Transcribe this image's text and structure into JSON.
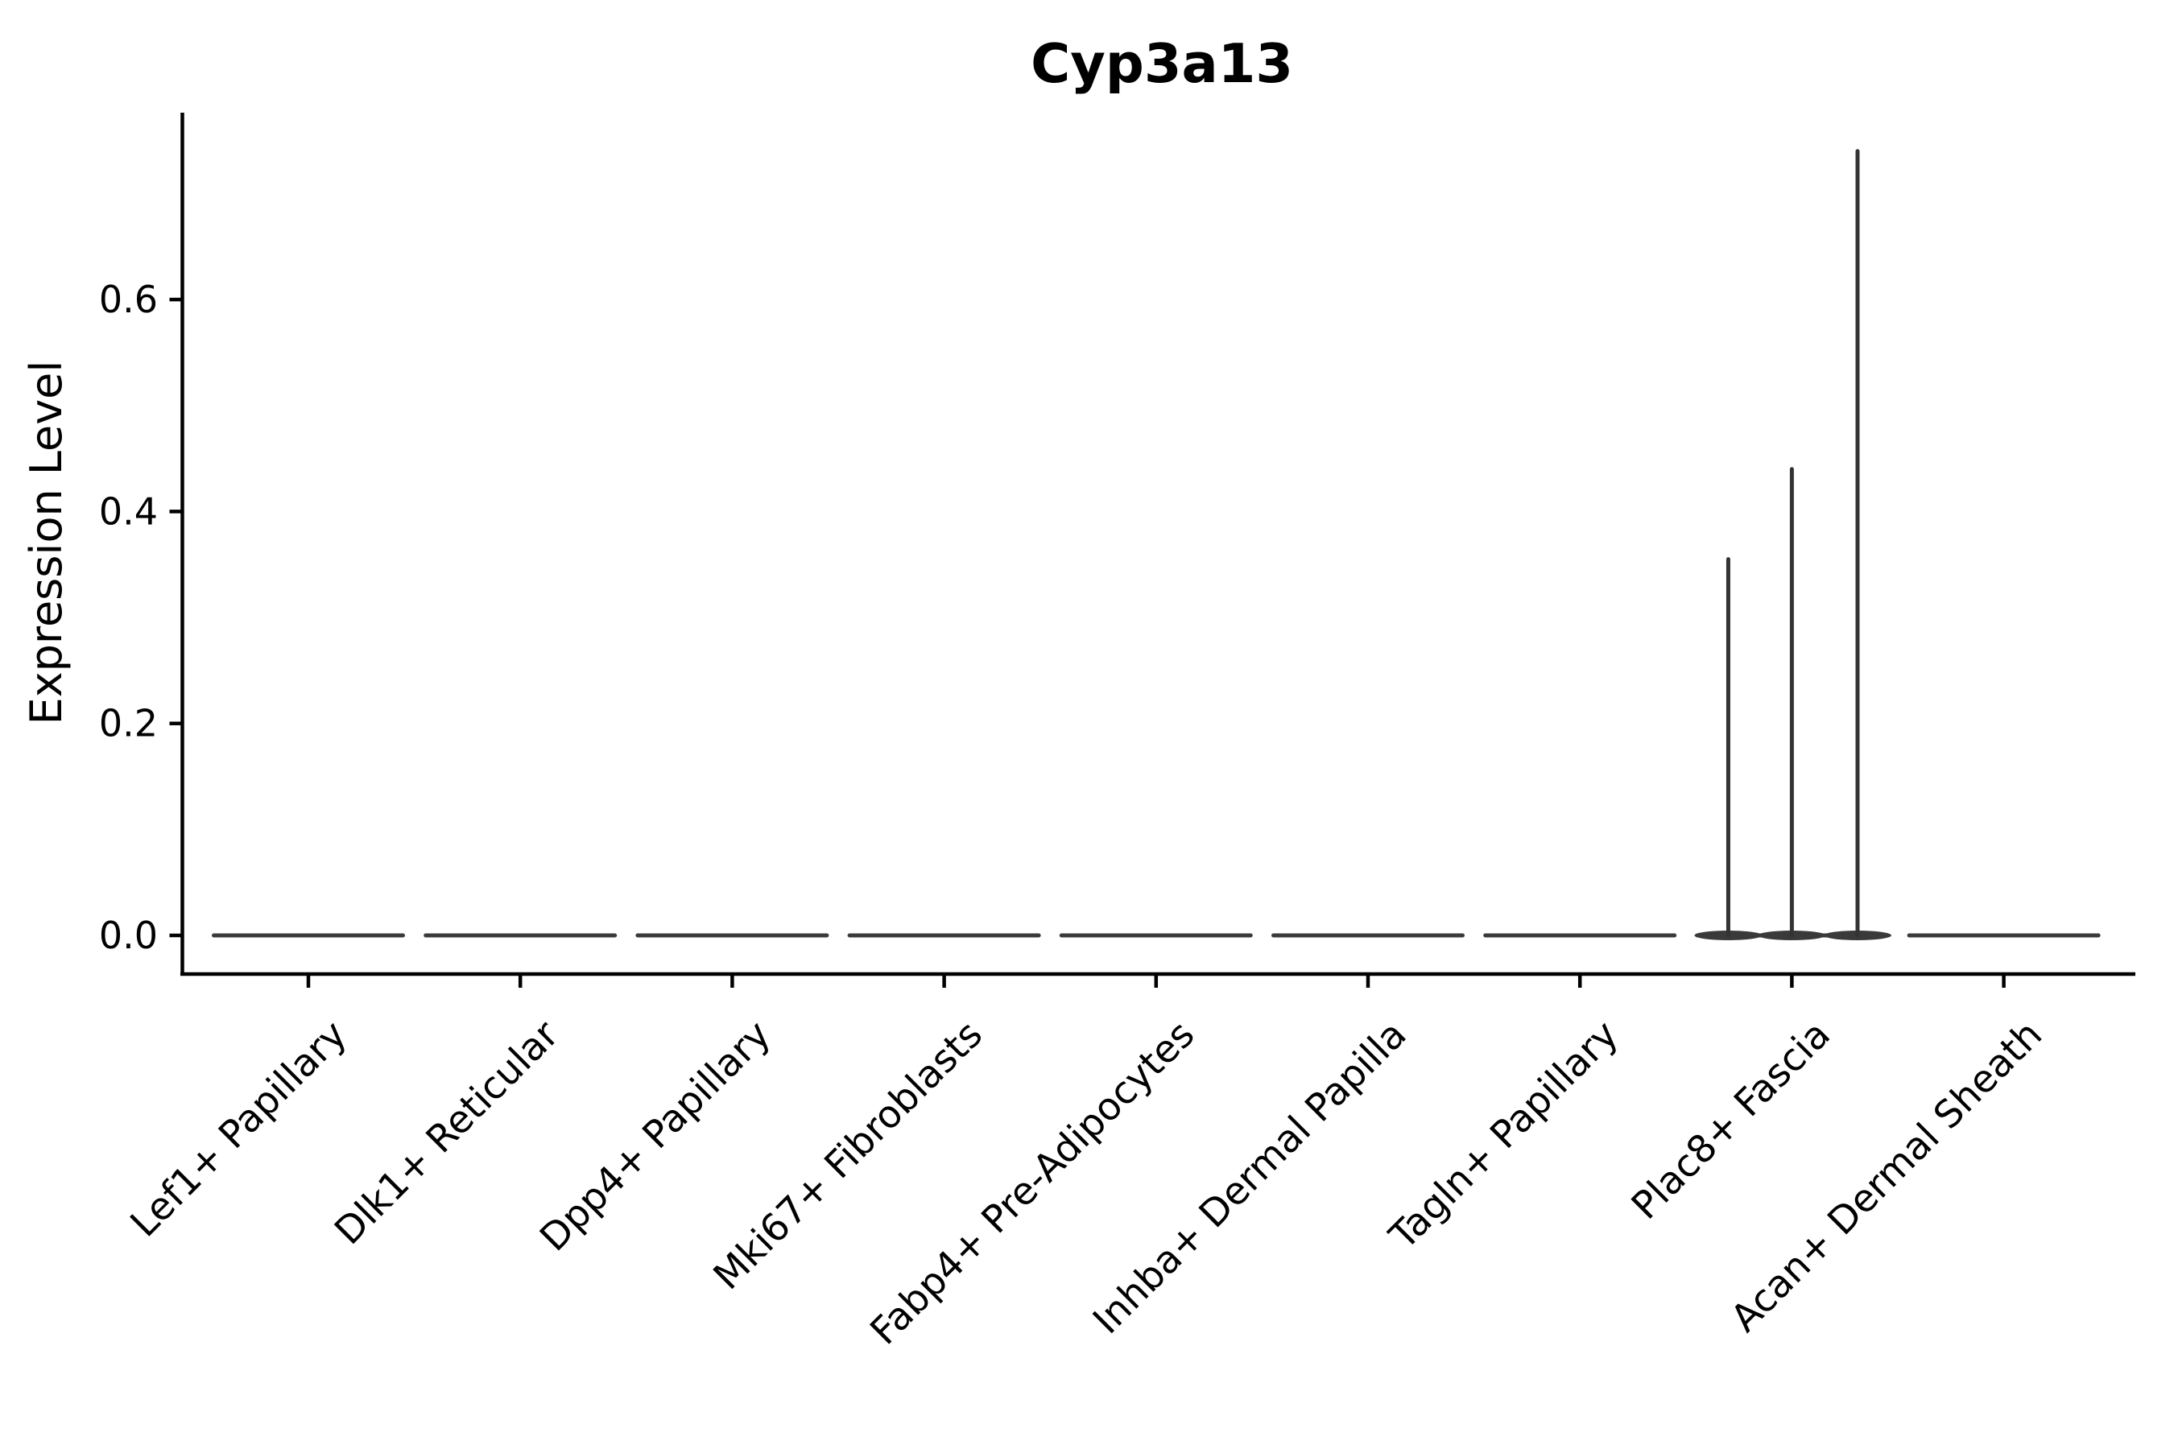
{
  "title": "Cyp3a13",
  "axes": {
    "y_label": "Expression Level",
    "y_tick_labels": [
      "0.0",
      "0.2",
      "0.4",
      "0.6"
    ]
  },
  "chart_data": {
    "type": "violin",
    "title": "Cyp3a13",
    "xlabel": "",
    "ylabel": "Expression Level",
    "categories": [
      "Lef1+ Papillary",
      "Dlk1+ Reticular",
      "Dpp4+ Papillary",
      "Mki67+ Fibroblasts",
      "Fabp4+ Pre-Adipocytes",
      "Inhba+ Dermal Papilla",
      "Tagln+ Papillary",
      "Plac8+ Fascia",
      "Acan+ Dermal Sheath"
    ],
    "yticks": [
      0.0,
      0.2,
      0.4,
      0.6
    ],
    "ylim": [
      -0.035,
      0.78
    ],
    "grid": false,
    "legend_position": "none",
    "series": [
      {
        "name": "Lef1+ Papillary",
        "base_value": 0.0,
        "spikes": []
      },
      {
        "name": "Dlk1+ Reticular",
        "base_value": 0.0,
        "spikes": []
      },
      {
        "name": "Dpp4+ Papillary",
        "base_value": 0.0,
        "spikes": []
      },
      {
        "name": "Mki67+ Fibroblasts",
        "base_value": 0.0,
        "spikes": []
      },
      {
        "name": "Fabp4+ Pre-Adipocytes",
        "base_value": 0.0,
        "spikes": []
      },
      {
        "name": "Inhba+ Dermal Papilla",
        "base_value": 0.0,
        "spikes": []
      },
      {
        "name": "Tagln+ Papillary",
        "base_value": 0.0,
        "spikes": []
      },
      {
        "name": "Plac8+ Fascia",
        "base_value": 0.0,
        "spikes": [
          {
            "value": 0.355,
            "offset": -0.3
          },
          {
            "value": 0.44,
            "offset": 0.0
          },
          {
            "value": 0.74,
            "offset": 0.31
          }
        ]
      },
      {
        "name": "Acan+ Dermal Sheath",
        "base_value": 0.0,
        "spikes": []
      }
    ]
  },
  "colors": {
    "background": "#ffffff",
    "axis": "#000000",
    "text": "#000000",
    "violin": "#3a3a3a",
    "spike": "#333333"
  }
}
